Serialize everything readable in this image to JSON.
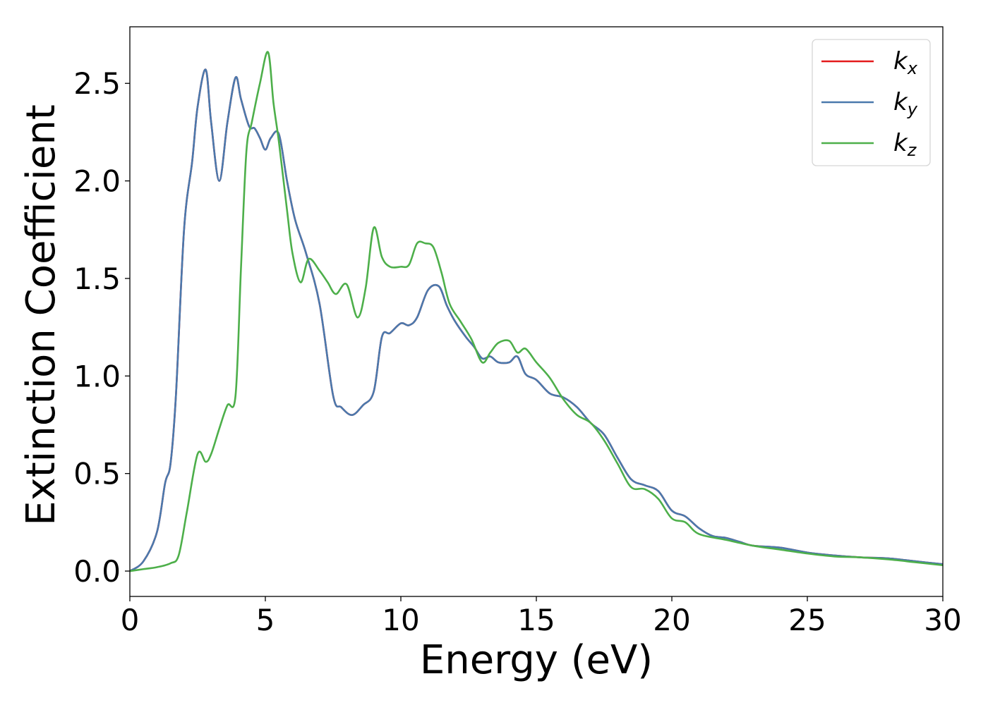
{
  "chart_data": {
    "type": "line",
    "title": "",
    "xlabel": "Energy (eV)",
    "ylabel": "Extinction Coefficient",
    "xlim": [
      0,
      30
    ],
    "ylim": [
      -0.13,
      2.79
    ],
    "xticks": [
      0,
      5,
      10,
      15,
      20,
      25,
      30
    ],
    "xtick_labels": [
      "0",
      "5",
      "10",
      "15",
      "20",
      "25",
      "30"
    ],
    "yticks": [
      0.0,
      0.5,
      1.0,
      1.5,
      2.0,
      2.5
    ],
    "ytick_labels": [
      "0.0",
      "0.5",
      "1.0",
      "1.5",
      "2.0",
      "2.5"
    ],
    "grid": false,
    "legend_position": "top-right",
    "series": [
      {
        "name": "k_x",
        "legend_base": "k",
        "legend_sub": "x",
        "color": "#e41a1c",
        "x": [
          0,
          0.5,
          1.0,
          1.3,
          1.5,
          1.7,
          2.0,
          2.3,
          2.5,
          2.8,
          3.0,
          3.3,
          3.6,
          3.9,
          4.1,
          4.4,
          4.6,
          4.8,
          5.0,
          5.2,
          5.5,
          5.8,
          6.1,
          6.5,
          7.0,
          7.5,
          7.8,
          8.2,
          8.6,
          9.0,
          9.3,
          9.6,
          10.0,
          10.3,
          10.6,
          11.0,
          11.4,
          11.7,
          12.0,
          12.4,
          12.7,
          13.0,
          13.3,
          13.6,
          14.0,
          14.3,
          14.6,
          15.0,
          15.5,
          16.0,
          16.5,
          17.0,
          17.5,
          18.0,
          18.5,
          19.0,
          19.5,
          20.0,
          20.5,
          21.0,
          21.5,
          22.0,
          22.5,
          23.0,
          24.0,
          25.0,
          26.0,
          27.0,
          28.0,
          29.0,
          30.0
        ],
        "values": [
          0.0,
          0.05,
          0.2,
          0.45,
          0.55,
          0.9,
          1.75,
          2.1,
          2.38,
          2.57,
          2.3,
          2.0,
          2.3,
          2.53,
          2.42,
          2.28,
          2.27,
          2.22,
          2.16,
          2.22,
          2.24,
          2.0,
          1.8,
          1.63,
          1.37,
          0.9,
          0.84,
          0.8,
          0.85,
          0.92,
          1.2,
          1.22,
          1.27,
          1.26,
          1.3,
          1.44,
          1.46,
          1.36,
          1.28,
          1.2,
          1.15,
          1.09,
          1.1,
          1.07,
          1.07,
          1.1,
          1.01,
          0.98,
          0.91,
          0.89,
          0.84,
          0.76,
          0.7,
          0.58,
          0.47,
          0.44,
          0.41,
          0.31,
          0.28,
          0.22,
          0.18,
          0.17,
          0.15,
          0.13,
          0.12,
          0.095,
          0.08,
          0.07,
          0.065,
          0.05,
          0.035
        ]
      },
      {
        "name": "k_y",
        "legend_base": "k",
        "legend_sub": "y",
        "color": "#4a79ad",
        "x": [
          0,
          0.5,
          1.0,
          1.3,
          1.5,
          1.7,
          2.0,
          2.3,
          2.5,
          2.8,
          3.0,
          3.3,
          3.6,
          3.9,
          4.1,
          4.4,
          4.6,
          4.8,
          5.0,
          5.2,
          5.5,
          5.8,
          6.1,
          6.5,
          7.0,
          7.5,
          7.8,
          8.2,
          8.6,
          9.0,
          9.3,
          9.6,
          10.0,
          10.3,
          10.6,
          11.0,
          11.4,
          11.7,
          12.0,
          12.4,
          12.7,
          13.0,
          13.3,
          13.6,
          14.0,
          14.3,
          14.6,
          15.0,
          15.5,
          16.0,
          16.5,
          17.0,
          17.5,
          18.0,
          18.5,
          19.0,
          19.5,
          20.0,
          20.5,
          21.0,
          21.5,
          22.0,
          22.5,
          23.0,
          24.0,
          25.0,
          26.0,
          27.0,
          28.0,
          29.0,
          30.0
        ],
        "values": [
          0.0,
          0.05,
          0.2,
          0.45,
          0.55,
          0.9,
          1.75,
          2.1,
          2.38,
          2.57,
          2.3,
          2.0,
          2.3,
          2.53,
          2.42,
          2.28,
          2.27,
          2.22,
          2.16,
          2.22,
          2.24,
          2.0,
          1.8,
          1.63,
          1.37,
          0.9,
          0.84,
          0.8,
          0.85,
          0.92,
          1.2,
          1.22,
          1.27,
          1.26,
          1.3,
          1.44,
          1.46,
          1.36,
          1.28,
          1.2,
          1.15,
          1.09,
          1.1,
          1.07,
          1.07,
          1.1,
          1.01,
          0.98,
          0.91,
          0.89,
          0.84,
          0.76,
          0.7,
          0.58,
          0.47,
          0.44,
          0.41,
          0.31,
          0.28,
          0.22,
          0.18,
          0.17,
          0.15,
          0.13,
          0.12,
          0.095,
          0.08,
          0.07,
          0.065,
          0.05,
          0.035
        ]
      },
      {
        "name": "k_z",
        "legend_base": "k",
        "legend_sub": "z",
        "color": "#4daf4a",
        "x": [
          0,
          0.5,
          1.0,
          1.5,
          1.8,
          2.1,
          2.5,
          2.8,
          3.0,
          3.3,
          3.6,
          3.9,
          4.1,
          4.3,
          4.5,
          4.8,
          5.1,
          5.3,
          5.5,
          5.8,
          6.0,
          6.3,
          6.6,
          7.0,
          7.3,
          7.6,
          8.0,
          8.4,
          8.7,
          9.0,
          9.3,
          9.6,
          10.0,
          10.3,
          10.6,
          10.9,
          11.2,
          11.5,
          11.8,
          12.2,
          12.6,
          13.0,
          13.3,
          13.6,
          14.0,
          14.3,
          14.6,
          15.0,
          15.5,
          16.0,
          16.5,
          17.0,
          17.5,
          18.0,
          18.5,
          19.0,
          19.5,
          20.0,
          20.5,
          21.0,
          22.0,
          23.0,
          24.0,
          25.0,
          26.0,
          27.0,
          28.0,
          29.0,
          30.0
        ],
        "values": [
          0.0,
          0.01,
          0.02,
          0.04,
          0.08,
          0.3,
          0.6,
          0.56,
          0.6,
          0.73,
          0.85,
          0.9,
          1.55,
          2.15,
          2.3,
          2.5,
          2.66,
          2.4,
          2.2,
          1.85,
          1.63,
          1.48,
          1.6,
          1.54,
          1.48,
          1.42,
          1.47,
          1.3,
          1.45,
          1.76,
          1.61,
          1.56,
          1.56,
          1.57,
          1.68,
          1.68,
          1.66,
          1.53,
          1.37,
          1.28,
          1.19,
          1.07,
          1.12,
          1.17,
          1.18,
          1.12,
          1.14,
          1.07,
          0.99,
          0.88,
          0.8,
          0.76,
          0.67,
          0.55,
          0.43,
          0.42,
          0.37,
          0.27,
          0.25,
          0.19,
          0.16,
          0.13,
          0.11,
          0.09,
          0.075,
          0.07,
          0.06,
          0.045,
          0.03
        ]
      }
    ]
  }
}
